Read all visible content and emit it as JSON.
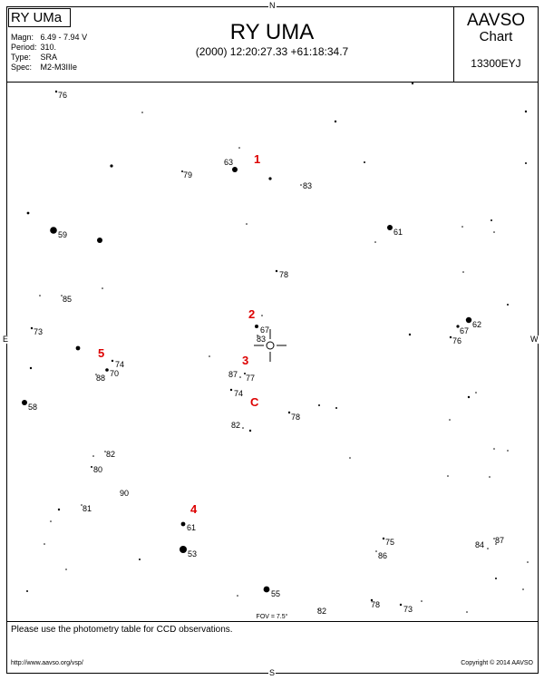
{
  "header": {
    "star_box": "RY UMa",
    "title": "RY UMA",
    "coords": "(2000) 12:20:27.33  +61:18:34.7",
    "org": "AAVSO",
    "org_sub": "Chart",
    "chart_id": "13300EYJ",
    "info": [
      {
        "label": "Magn:",
        "value": "6.49 - 7.94 V"
      },
      {
        "label": "Period:",
        "value": "310."
      },
      {
        "label": "Type:",
        "value": "SRA"
      },
      {
        "label": "Spec:",
        "value": "M2-M3IIIe"
      }
    ]
  },
  "compass": {
    "n": "N",
    "s": "S",
    "e": "E",
    "w": "W"
  },
  "fov": "FOV = 7.5°",
  "footer": {
    "note": "Please use the photometry table for CCD observations.",
    "url": "http://www.aavso.org/vsp/",
    "copyright": "Copyright © 2014 AAVSO"
  },
  "colors": {
    "marker": "#dd0000",
    "ink": "#000000"
  },
  "markers": [
    "1",
    "2",
    "3",
    "C",
    "4",
    "5"
  ],
  "labels": [
    "76",
    "63",
    "79",
    "83",
    "59",
    "61",
    "78",
    "85",
    "73",
    "67",
    "83",
    "62",
    "67",
    "76",
    "74",
    "70",
    "88",
    "87",
    "77",
    "74",
    "58",
    "82",
    "78",
    "82",
    "80",
    "90",
    "81",
    "61",
    "53",
    "75",
    "86",
    "84",
    "87",
    "55",
    "78",
    "73",
    "82"
  ]
}
